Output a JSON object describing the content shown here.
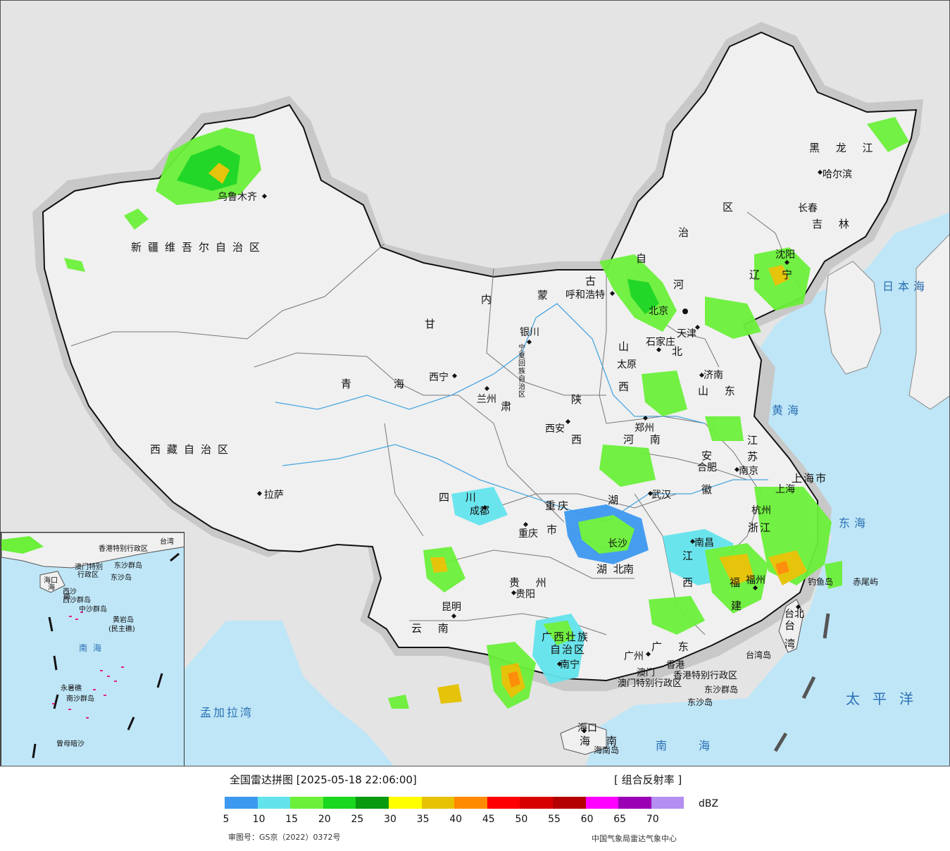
{
  "title": "全国雷达拼图 [2025-05-18 22:06:00]",
  "product": "[ 组合反射率 ]",
  "legend": {
    "unit": "dBZ",
    "ticks": [
      "5",
      "10",
      "15",
      "20",
      "25",
      "30",
      "35",
      "40",
      "45",
      "50",
      "55",
      "60",
      "65",
      "70"
    ],
    "colors": [
      "#3d99f0",
      "#63e4ec",
      "#6cf03a",
      "#19d61e",
      "#0a9a10",
      "#ffff00",
      "#e6c200",
      "#ff8a00",
      "#ff0000",
      "#d80000",
      "#b40000",
      "#ff00ff",
      "#9a00b4",
      "#b48ef0"
    ]
  },
  "approval_number": "审图号：GS京（2022）0372号",
  "source": "中国气象局雷达气象中心",
  "regions": {
    "xinjiang": "新疆维吾尔自治区",
    "tibet": "西藏自治区",
    "qinghai_1": "青",
    "qinghai_2": "海",
    "gansu": "甘",
    "gansu_2": "肃",
    "sichuan": "四 川",
    "yunnan": "云 南",
    "guizhou": "贵 州",
    "guangxi_1": "广西壮族",
    "guangxi_2": "自治区",
    "guangdong": "广 东",
    "hunan_1": "湖",
    "hunan_2": "南",
    "hubei": "湖 北",
    "henan": "河 南",
    "shaanxi_1": "陕",
    "shaanxi_2": "西",
    "shanxi_1": "山",
    "shanxi_2": "西",
    "hebei_1": "河",
    "hebei_2": "北",
    "shandong": "山 东",
    "jiangsu_1": "江",
    "jiangsu_2": "苏",
    "anhui_1": "安",
    "anhui_2": "徽",
    "zhejiang": "浙江",
    "jiangxi_1": "江",
    "jiangxi_2": "西",
    "fujian_1": "福",
    "fujian_2": "建",
    "chongqing_1": "重",
    "chongqing_2": "庆",
    "chongqing_3": "市",
    "shanghai": "上海市",
    "innermongolia_1": "内",
    "innermongolia_2": "蒙",
    "innermongolia_3": "古",
    "innermongolia_4": "自",
    "innermongolia_5": "治",
    "innermongolia_6": "区",
    "heilongjiang": "黑 龙 江",
    "jilin": "吉 林",
    "liaoning_1": "辽",
    "liaoning_2": "宁",
    "ningxia": "宁夏回族自治区",
    "hainan_1": "海",
    "hainan_2": "南",
    "taiwan_1": "台",
    "taiwan_2": "湾",
    "hongkong": "香港特别行政区",
    "macau": "澳门特别行政区"
  },
  "cities": {
    "urumqi": "乌鲁木齐",
    "lhasa": "拉萨",
    "xining": "西宁",
    "lanzhou": "兰州",
    "yinchuan": "银川",
    "hohhot": "呼和浩特",
    "beijing": "北京",
    "tianjin": "天津",
    "shijiazhuang": "石家庄",
    "taiyuan": "太原",
    "jinan": "济南",
    "zhengzhou": "郑州",
    "xian": "西安",
    "chengdu": "成都",
    "chongqing": "重庆",
    "wuhan": "武汉",
    "hefei": "合肥",
    "nanjing": "南京",
    "shanghai": "上海",
    "hangzhou": "杭州",
    "nanchang": "南昌",
    "changsha": "长沙",
    "guiyang": "贵阳",
    "kunming": "昆明",
    "nanning": "南宁",
    "guangzhou": "广州",
    "xianggang": "香港",
    "aomen": "澳门",
    "haikou": "海口",
    "fuzhou": "福州",
    "taipei": "台北",
    "shenyang": "沈阳",
    "changchun": "长春",
    "harbin": "哈尔滨"
  },
  "seas": {
    "japan_sea": "日本海",
    "yellow_sea": "黄海",
    "east_sea": "东海",
    "south_sea": "南 海",
    "pacific": "太平洋",
    "bay_of_bengal": "孟加拉湾"
  },
  "islands": {
    "diaoyu": "钓鱼岛",
    "chiwei": "赤尾屿",
    "taiwan_island": "台湾岛",
    "dongsha_islands": "东沙群岛",
    "dongsha": "东沙岛",
    "hainan_island": "海南岛"
  },
  "inset": {
    "hongkong": "香港特别行政区",
    "macau_1": "澳门特别",
    "macau_2": "行政区",
    "dongsha_islands": "东沙群岛",
    "dongsha": "东沙岛",
    "haikou": "海口",
    "hainan_1": "海",
    "hainan_2": "南",
    "xisha_1": "西沙",
    "xisha_2": "西沙群岛",
    "zhongsha": "中沙群岛",
    "huangyan_1": "黄岩岛",
    "huangyan_2": "(民主礁)",
    "south_sea": "南海",
    "yongshu": "永暑礁",
    "nansha": "南沙群岛",
    "zengmu": "曾母暗沙",
    "taiwan": "台湾"
  }
}
